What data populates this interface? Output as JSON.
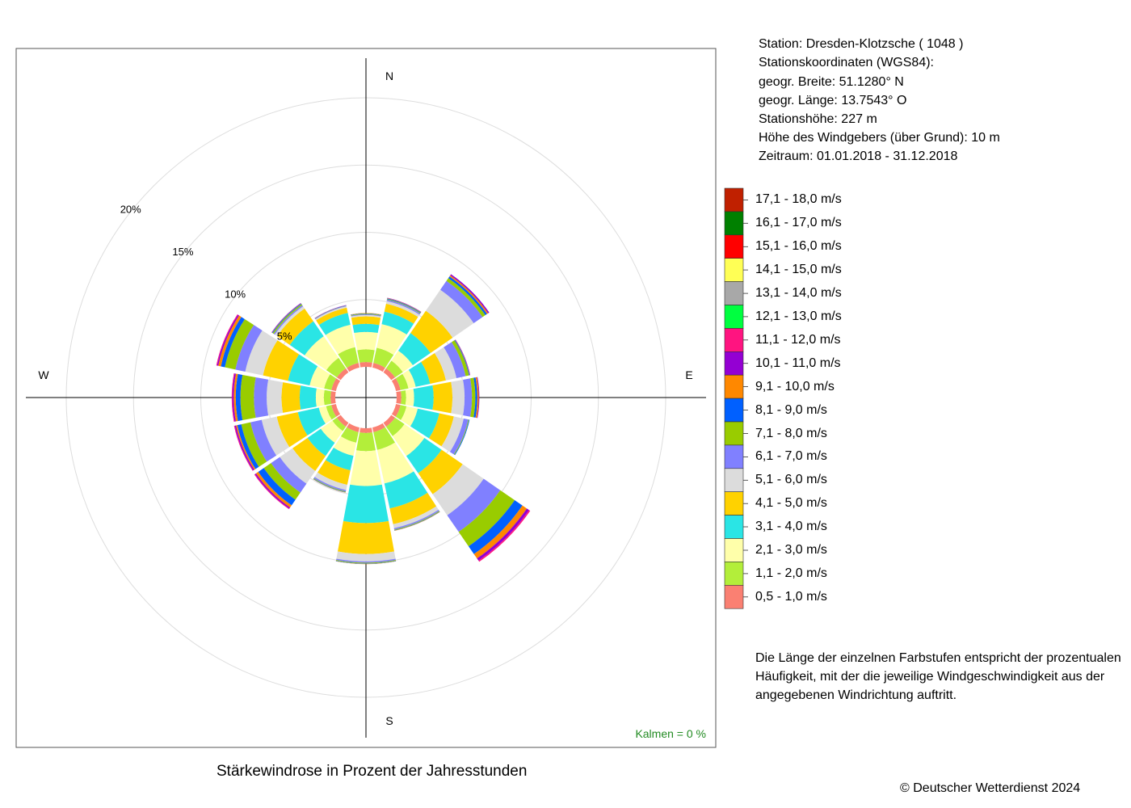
{
  "station": {
    "line_station": "Station:  Dresden-Klotzsche  ( 1048 )",
    "line_coords": "Stationskoordinaten (WGS84):",
    "line_lat": "geogr. Breite: 51.1280° N",
    "line_lon": "geogr. Länge: 13.7543° O",
    "line_height": "Stationshöhe: 227 m",
    "line_sensor": "Höhe des Windgebers (über Grund): 10 m",
    "line_period": "Zeitraum: 01.01.2018 - 31.12.2018"
  },
  "note": "Die Länge der einzelnen Farbstufen entspricht der prozentualen Häufigkeit, mit der die jeweilige Windgeschwindigkeit aus der angegebenen Windrichtung auftritt.",
  "title": "Stärkewindrose in Prozent der Jahresstunden",
  "copyright": "© Deutscher Wetterdienst  2024",
  "calm_label": "Kalmen  =  0 %",
  "calm_color": "#228b22",
  "chart_data": {
    "type": "wind-rose",
    "title": "Stärkewindrose in Prozent der Jahresstunden",
    "directions": [
      "N",
      "NNE",
      "NE",
      "ENE",
      "E",
      "ESE",
      "SE",
      "SSE",
      "S",
      "SSW",
      "SW",
      "WSW",
      "W",
      "WNW",
      "NW",
      "NNW"
    ],
    "compass_labels": [
      "N",
      "E",
      "S",
      "W"
    ],
    "rings": [
      5,
      10,
      15,
      20
    ],
    "ring_labels": [
      "5%",
      "10%",
      "15%",
      "20%"
    ],
    "calm_percent": 0,
    "grid": true,
    "legend_placement": "right",
    "bins": [
      {
        "label": "0,5 - 1,0 m/s",
        "color": "#fa8072"
      },
      {
        "label": "1,1 - 2,0 m/s",
        "color": "#b3ee3a"
      },
      {
        "label": "2,1 - 3,0 m/s",
        "color": "#ffffaa"
      },
      {
        "label": "3,1 - 4,0 m/s",
        "color": "#2ae5e5"
      },
      {
        "label": "4,1 - 5,0 m/s",
        "color": "#ffd200"
      },
      {
        "label": "5,1 - 6,0 m/s",
        "color": "#dcdcdc"
      },
      {
        "label": "6,1 - 7,0 m/s",
        "color": "#8080ff"
      },
      {
        "label": "7,1 - 8,0 m/s",
        "color": "#99cc00"
      },
      {
        "label": "8,1 - 9,0 m/s",
        "color": "#0060ff"
      },
      {
        "label": "9,1 - 10,0 m/s",
        "color": "#ff8800"
      },
      {
        "label": "10,1 - 11,0 m/s",
        "color": "#9400d3"
      },
      {
        "label": "11,1 - 12,0 m/s",
        "color": "#ff1480"
      },
      {
        "label": "12,1 - 13,0 m/s",
        "color": "#00ff40"
      },
      {
        "label": "13,1 - 14,0 m/s",
        "color": "#a8a8a8"
      },
      {
        "label": "14,1 - 15,0 m/s",
        "color": "#ffff55"
      },
      {
        "label": "15,1 - 16,0 m/s",
        "color": "#ff0000"
      },
      {
        "label": "16,1 - 17,0 m/s",
        "color": "#008000"
      },
      {
        "label": "17,1 - 18,0 m/s",
        "color": "#c02000"
      }
    ],
    "cumulative_percent": {
      "N": [
        0.35,
        1.3,
        2.6,
        3.2,
        3.75,
        3.85,
        3.9,
        3.95,
        3.98,
        4.0,
        4.0,
        4.0,
        4.0,
        4.0,
        4.0,
        4.0,
        4.0,
        4.0
      ],
      "NNE": [
        0.35,
        1.5,
        3.3,
        4.25,
        4.85,
        5.05,
        5.15,
        5.2,
        5.25,
        5.28,
        5.3,
        5.3,
        5.3,
        5.3,
        5.3,
        5.3,
        5.3,
        5.3
      ],
      "NE": [
        0.35,
        1.05,
        1.95,
        3.55,
        5.55,
        7.45,
        8.25,
        8.5,
        8.65,
        8.75,
        8.85,
        8.85,
        8.85,
        8.85,
        8.85,
        8.85,
        8.85,
        8.85
      ],
      "ENE": [
        0.35,
        0.95,
        1.5,
        2.6,
        3.8,
        4.6,
        5.3,
        5.55,
        5.6,
        5.62,
        5.65,
        5.65,
        5.65,
        5.65,
        5.65,
        5.65,
        5.65,
        5.65
      ],
      "E": [
        0.35,
        0.7,
        1.3,
        2.75,
        4.15,
        5.05,
        5.6,
        5.85,
        6.0,
        6.1,
        6.15,
        6.15,
        6.15,
        6.15,
        6.15,
        6.15,
        6.15,
        6.15
      ],
      "ESE": [
        0.35,
        0.8,
        1.65,
        3.3,
        4.4,
        5.15,
        5.5,
        5.55,
        5.6,
        5.6,
        5.6,
        5.6,
        5.6,
        5.6,
        5.6,
        5.6,
        5.6,
        5.6
      ],
      "SE": [
        0.35,
        1.2,
        3.0,
        4.55,
        6.45,
        8.35,
        9.85,
        11.15,
        11.85,
        12.25,
        12.45,
        12.55,
        12.55,
        12.55,
        12.55,
        12.55,
        12.55,
        12.55
      ],
      "SSE": [
        0.35,
        1.7,
        4.25,
        6.15,
        7.35,
        7.65,
        7.75,
        7.8,
        7.83,
        7.85,
        7.85,
        7.85,
        7.85,
        7.85,
        7.85,
        7.85,
        7.85,
        7.85
      ],
      "S": [
        0.35,
        1.7,
        4.3,
        7.05,
        9.35,
        9.9,
        10.0,
        10.05,
        10.08,
        10.1,
        10.1,
        10.1,
        10.1,
        10.1,
        10.1,
        10.1,
        10.1,
        10.1
      ],
      "SSW": [
        0.35,
        1.15,
        2.15,
        3.25,
        4.35,
        4.75,
        4.85,
        4.9,
        4.93,
        4.95,
        4.95,
        4.95,
        4.95,
        4.95,
        4.95,
        4.95,
        4.95,
        4.95
      ],
      "SW": [
        0.35,
        0.75,
        1.8,
        3.0,
        4.35,
        5.5,
        6.3,
        6.95,
        7.45,
        7.65,
        7.75,
        7.8,
        7.8,
        7.8,
        7.8,
        7.8,
        7.8,
        7.8
      ],
      "WSW": [
        0.35,
        0.75,
        1.3,
        2.9,
        4.5,
        5.65,
        6.5,
        7.2,
        7.5,
        7.6,
        7.7,
        7.75,
        7.75,
        7.75,
        7.75,
        7.75,
        7.75,
        7.75
      ],
      "W": [
        0.35,
        0.85,
        1.45,
        2.65,
        4.0,
        5.1,
        6.05,
        7.05,
        7.4,
        7.55,
        7.65,
        7.7,
        7.7,
        7.7,
        7.7,
        7.7,
        7.7,
        7.7
      ],
      "WNW": [
        0.35,
        0.9,
        2.0,
        3.65,
        5.55,
        6.9,
        7.65,
        8.45,
        8.75,
        8.95,
        9.05,
        9.1,
        9.1,
        9.1,
        9.1,
        9.1,
        9.1,
        9.1
      ],
      "NW": [
        0.35,
        1.3,
        3.25,
        4.6,
        5.75,
        5.95,
        6.05,
        6.15,
        6.2,
        6.22,
        6.25,
        6.25,
        6.25,
        6.25,
        6.25,
        6.25,
        6.25,
        6.25
      ],
      "NNW": [
        0.35,
        1.55,
        3.25,
        4.15,
        4.55,
        4.65,
        4.68,
        4.7,
        4.72,
        4.73,
        4.75,
        4.75,
        4.75,
        4.75,
        4.75,
        4.75,
        4.75,
        4.75
      ]
    }
  }
}
